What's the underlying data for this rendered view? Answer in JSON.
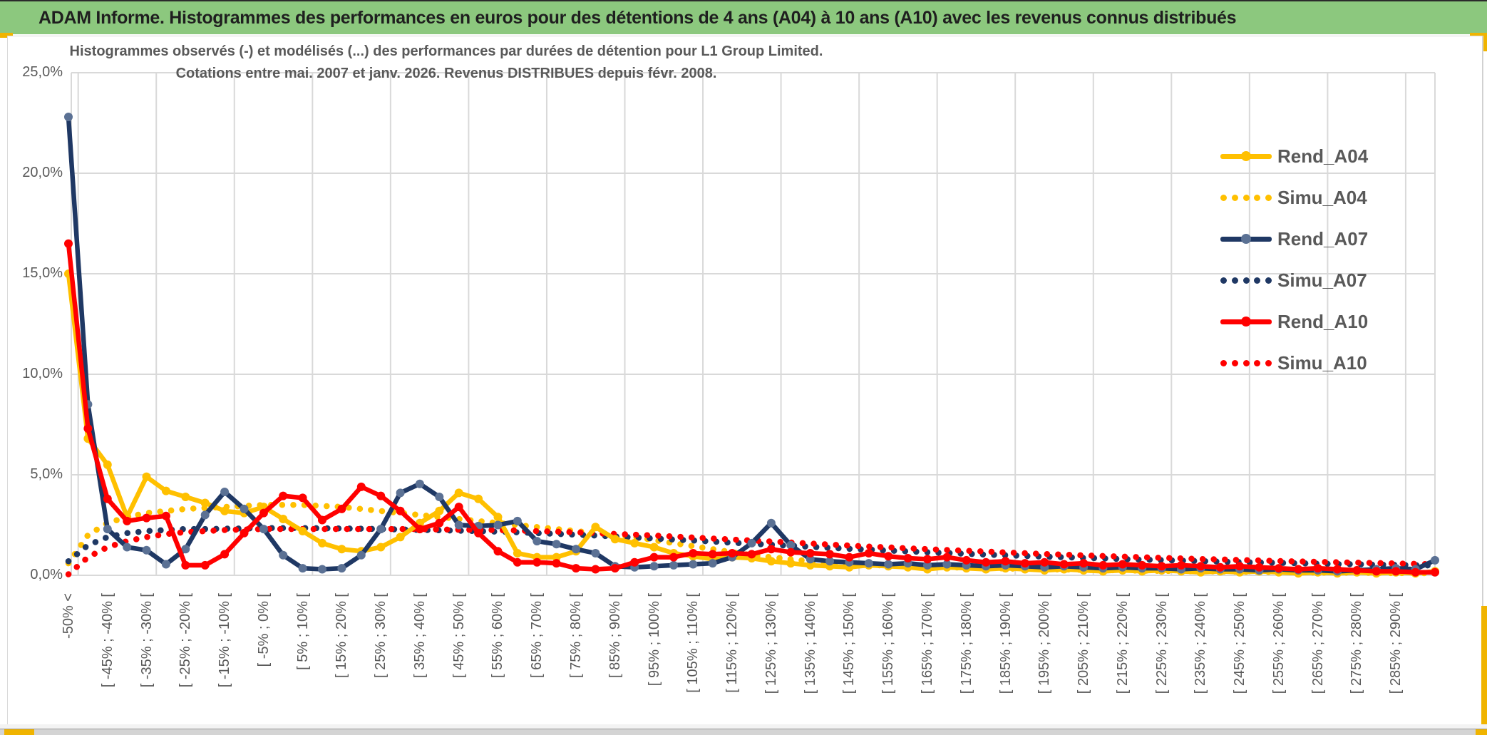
{
  "header": {
    "title": "ADAM Informe. Histogrammes des performances en euros pour des détentions de 4 ans (A04) à 10 ans (A10) avec les revenus connus distribués",
    "bg_color": "#8CC87E",
    "text_color": "#1f1f1f"
  },
  "accent_color": "#F0B400",
  "chart_data": {
    "type": "line",
    "title_lines": [
      "Histogrammes observés (-) et modélisés (...) des performances par durées de détention pour L1 Group Limited.",
      "Cotations entre mai. 2007 et janv. 2026. Revenus DISTRIBUES depuis févr. 2008."
    ],
    "unit": "percent",
    "ylim": [
      0,
      25
    ],
    "grid": true,
    "legend_position": "right",
    "y_tick_labels": [
      "0,0%",
      "5,0%",
      "10,0%",
      "15,0%",
      "20,0%",
      "25,0%"
    ],
    "x_tick_labels": [
      "-50% <",
      "[ -45% ; -40% [",
      "[ -35% ; -30% [",
      "[ -25% ; -20% [",
      "[ -15% ; -10% [",
      "[ -5% ; 0% [",
      "[ 5% ; 10% [",
      "[ 15% ; 20% [",
      "[ 25% ; 30% [",
      "[ 35% ; 40% [",
      "[ 45% ; 50% [",
      "[ 55% ; 60% [",
      "[ 65% ; 70% [",
      "[ 75% ; 80% [",
      "[ 85% ; 90% [",
      "[ 95% ; 100% [",
      "[ 105% ; 110% [",
      "[ 115% ; 120% [",
      "[ 125% ; 130% [",
      "[ 135% ; 140% [",
      "[ 145% ; 150% [",
      "[ 155% ; 160% [",
      "[ 165% ; 170% [",
      "[ 175% ; 180% [",
      "[ 185% ; 190% [",
      "[ 195% ; 200% [",
      "[ 205% ; 210% [",
      "[ 215% ; 220% [",
      "[ 225% ; 230% [",
      "[ 235% ; 240% [",
      "[ 245% ; 250% [",
      "[ 255% ; 260% [",
      "[ 265% ; 270% [",
      "[ 275% ; 280% [",
      "[ 285% ; 290% ["
    ],
    "points_per_label": 2,
    "series": [
      {
        "name": "Rend_A04",
        "style": "solid",
        "color": "#FFC000",
        "marker_color": "#FFC000",
        "values": [
          15.0,
          6.8,
          5.5,
          2.9,
          4.9,
          4.2,
          3.9,
          3.6,
          3.2,
          3.1,
          3.4,
          2.8,
          2.2,
          1.6,
          1.3,
          1.2,
          1.4,
          1.9,
          2.6,
          3.2,
          4.1,
          3.8,
          2.9,
          1.1,
          0.9,
          0.9,
          1.2,
          2.4,
          1.8,
          1.6,
          1.4,
          1.1,
          0.95,
          0.8,
          0.9,
          0.85,
          0.7,
          0.6,
          0.5,
          0.45,
          0.4,
          0.5,
          0.45,
          0.4,
          0.3,
          0.4,
          0.35,
          0.3,
          0.35,
          0.3,
          0.25,
          0.3,
          0.25,
          0.2,
          0.25,
          0.2,
          0.25,
          0.2,
          0.15,
          0.2,
          0.15,
          0.2,
          0.15,
          0.1,
          0.15,
          0.1,
          0.15,
          0.1,
          0.15,
          0.1,
          0.2
        ]
      },
      {
        "name": "Simu_A04",
        "style": "dotted",
        "color": "#FFC000",
        "marker_color": "#FFC000",
        "values": [
          0.6,
          2.0,
          2.6,
          2.9,
          3.1,
          3.2,
          3.3,
          3.35,
          3.4,
          3.45,
          3.5,
          3.5,
          3.5,
          3.45,
          3.4,
          3.3,
          3.2,
          3.1,
          3.0,
          2.9,
          2.8,
          2.7,
          2.6,
          2.5,
          2.4,
          2.3,
          2.2,
          2.1,
          2.0,
          1.9,
          1.75,
          1.6,
          1.45,
          1.3,
          1.15,
          1.0,
          0.9,
          0.8,
          0.7,
          0.62,
          0.56,
          0.52,
          0.48,
          0.45,
          0.42,
          0.4,
          0.38,
          0.36,
          0.34,
          0.32,
          0.3,
          0.29,
          0.27,
          0.26,
          0.25,
          0.23,
          0.22,
          0.21,
          0.2,
          0.19,
          0.18,
          0.17,
          0.16,
          0.15,
          0.14,
          0.13,
          0.13,
          0.12,
          0.11,
          0.11,
          0.1
        ]
      },
      {
        "name": "Rend_A07",
        "style": "solid",
        "color": "#1F3864",
        "marker_color": "#5B7194",
        "values": [
          22.8,
          8.5,
          2.3,
          1.4,
          1.25,
          0.55,
          1.3,
          3.0,
          4.15,
          3.3,
          2.3,
          1.0,
          0.35,
          0.3,
          0.35,
          1.0,
          2.3,
          4.1,
          4.55,
          3.9,
          2.5,
          2.45,
          2.5,
          2.7,
          1.7,
          1.55,
          1.3,
          1.1,
          0.45,
          0.4,
          0.45,
          0.5,
          0.55,
          0.6,
          0.9,
          1.6,
          2.6,
          1.5,
          0.8,
          0.7,
          0.65,
          0.6,
          0.55,
          0.6,
          0.5,
          0.55,
          0.5,
          0.45,
          0.5,
          0.45,
          0.4,
          0.45,
          0.4,
          0.35,
          0.4,
          0.35,
          0.35,
          0.3,
          0.35,
          0.3,
          0.3,
          0.25,
          0.3,
          0.25,
          0.25,
          0.2,
          0.25,
          0.3,
          0.35,
          0.3,
          0.75
        ]
      },
      {
        "name": "Simu_A07",
        "style": "dotted",
        "color": "#1F3864",
        "marker_color": "#1F3864",
        "values": [
          0.7,
          1.5,
          1.9,
          2.1,
          2.2,
          2.25,
          2.3,
          2.3,
          2.32,
          2.33,
          2.35,
          2.35,
          2.35,
          2.34,
          2.33,
          2.32,
          2.3,
          2.28,
          2.26,
          2.24,
          2.22,
          2.2,
          2.17,
          2.14,
          2.1,
          2.06,
          2.02,
          1.98,
          1.93,
          1.88,
          1.83,
          1.78,
          1.73,
          1.68,
          1.62,
          1.57,
          1.52,
          1.47,
          1.42,
          1.37,
          1.32,
          1.28,
          1.23,
          1.19,
          1.15,
          1.11,
          1.07,
          1.03,
          1.0,
          0.96,
          0.93,
          0.9,
          0.87,
          0.84,
          0.81,
          0.78,
          0.76,
          0.73,
          0.71,
          0.68,
          0.66,
          0.64,
          0.62,
          0.6,
          0.58,
          0.56,
          0.55,
          0.53,
          0.52,
          0.5,
          0.49
        ]
      },
      {
        "name": "Rend_A10",
        "style": "solid",
        "color": "#FF0000",
        "marker_color": "#FF0000",
        "values": [
          16.5,
          7.3,
          3.8,
          2.7,
          2.85,
          2.95,
          0.5,
          0.5,
          1.05,
          2.1,
          3.1,
          3.95,
          3.85,
          2.75,
          3.3,
          4.4,
          3.95,
          3.2,
          2.3,
          2.6,
          3.4,
          2.1,
          1.2,
          0.65,
          0.65,
          0.6,
          0.35,
          0.3,
          0.35,
          0.65,
          0.9,
          0.9,
          1.1,
          1.05,
          1.1,
          1.05,
          1.3,
          1.15,
          1.1,
          1.05,
          0.9,
          1.1,
          0.95,
          0.85,
          0.8,
          0.9,
          0.75,
          0.65,
          0.7,
          0.6,
          0.65,
          0.55,
          0.6,
          0.5,
          0.55,
          0.5,
          0.45,
          0.5,
          0.45,
          0.4,
          0.45,
          0.4,
          0.35,
          0.3,
          0.35,
          0.3,
          0.25,
          0.2,
          0.2,
          0.15,
          0.15
        ]
      },
      {
        "name": "Simu_A10",
        "style": "dotted",
        "color": "#FF0000",
        "marker_color": "#FF0000",
        "values": [
          0.05,
          0.9,
          1.4,
          1.7,
          1.9,
          2.05,
          2.15,
          2.2,
          2.25,
          2.28,
          2.3,
          2.3,
          2.3,
          2.3,
          2.3,
          2.3,
          2.3,
          2.3,
          2.3,
          2.28,
          2.27,
          2.26,
          2.25,
          2.23,
          2.2,
          2.17,
          2.14,
          2.1,
          2.06,
          2.02,
          1.98,
          1.93,
          1.88,
          1.83,
          1.78,
          1.73,
          1.68,
          1.63,
          1.58,
          1.53,
          1.48,
          1.43,
          1.39,
          1.34,
          1.3,
          1.26,
          1.22,
          1.18,
          1.14,
          1.1,
          1.06,
          1.03,
          0.99,
          0.96,
          0.93,
          0.9,
          0.87,
          0.84,
          0.81,
          0.79,
          0.76,
          0.74,
          0.71,
          0.69,
          0.67,
          0.65,
          0.63,
          0.61,
          0.59,
          0.57,
          0.55
        ]
      }
    ]
  }
}
